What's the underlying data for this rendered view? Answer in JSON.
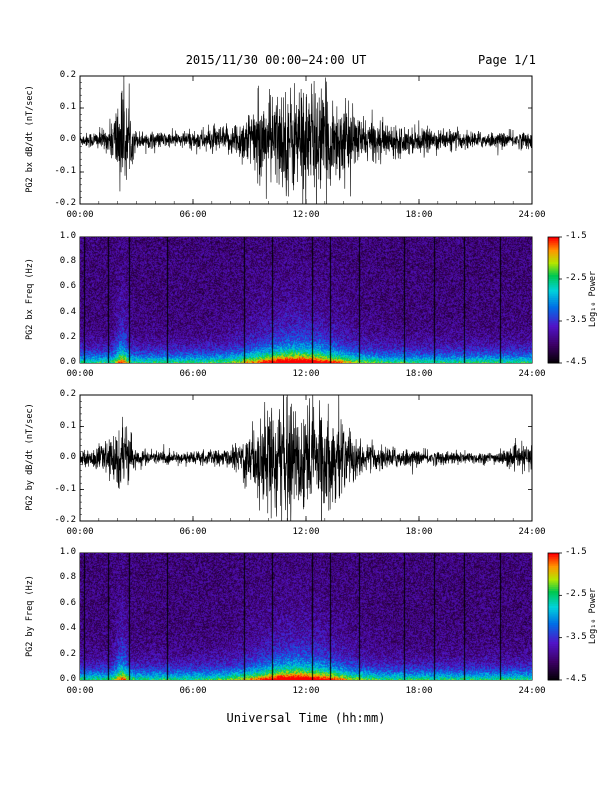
{
  "header": {
    "title": "2015/11/30  00:00−24:00 UT",
    "page": "Page 1/1"
  },
  "xlabel": "Universal Time (hh:mm)",
  "chart_data": [
    {
      "type": "line",
      "ylabel": "PG2 bx dB/dt (nT/sec)",
      "xticks": [
        "00:00",
        "06:00",
        "12:00",
        "18:00",
        "24:00"
      ],
      "xlim": [
        0,
        24
      ],
      "ylim": [
        -0.2,
        0.2
      ],
      "yticks": [
        "-0.2",
        "-0.1",
        "0.0",
        "0.1",
        "0.2"
      ],
      "envelope": [
        {
          "hour": 0,
          "amplitude": 0.02
        },
        {
          "hour": 1.5,
          "amplitude": 0.04
        },
        {
          "hour": 2.2,
          "amplitude": 0.18
        },
        {
          "hour": 3,
          "amplitude": 0.03
        },
        {
          "hour": 5,
          "amplitude": 0.025
        },
        {
          "hour": 8,
          "amplitude": 0.05
        },
        {
          "hour": 10,
          "amplitude": 0.15
        },
        {
          "hour": 12,
          "amplitude": 0.2
        },
        {
          "hour": 13.5,
          "amplitude": 0.15
        },
        {
          "hour": 15,
          "amplitude": 0.07
        },
        {
          "hour": 18,
          "amplitude": 0.04
        },
        {
          "hour": 22,
          "amplitude": 0.025
        },
        {
          "hour": 24,
          "amplitude": 0.03
        }
      ]
    },
    {
      "type": "heatmap",
      "ylabel": "PG2 bx Freq (Hz)",
      "xticks": [
        "00:00",
        "06:00",
        "12:00",
        "18:00",
        "24:00"
      ],
      "xlim": [
        0,
        24
      ],
      "ylim": [
        0,
        1.0
      ],
      "yticks": [
        "0.0",
        "0.2",
        "0.4",
        "0.6",
        "0.8",
        "1.0"
      ],
      "colorbar": {
        "label": "Log₁₀ Power",
        "ticks": [
          "-1.5",
          "-2.5",
          "-3.5",
          "-4.5"
        ],
        "range": [
          -4.5,
          -1.5
        ]
      },
      "peak_hour": 11.5,
      "gap_hours": [
        0.2,
        1.5,
        2.6,
        4.6,
        8.7,
        10.2,
        12.3,
        13.3,
        14.8,
        17.2,
        18.8,
        20.4,
        22.3
      ]
    },
    {
      "type": "line",
      "ylabel": "PG2 by dB/dt (nT/sec)",
      "xticks": [
        "00:00",
        "06:00",
        "12:00",
        "18:00",
        "24:00"
      ],
      "xlim": [
        0,
        24
      ],
      "ylim": [
        -0.2,
        0.2
      ],
      "yticks": [
        "-0.2",
        "-0.1",
        "0.0",
        "0.1",
        "0.2"
      ],
      "envelope": [
        {
          "hour": 0,
          "amplitude": 0.02
        },
        {
          "hour": 1.5,
          "amplitude": 0.05
        },
        {
          "hour": 2.2,
          "amplitude": 0.13
        },
        {
          "hour": 3,
          "amplitude": 0.03
        },
        {
          "hour": 5,
          "amplitude": 0.02
        },
        {
          "hour": 8,
          "amplitude": 0.03
        },
        {
          "hour": 10,
          "amplitude": 0.18
        },
        {
          "hour": 12,
          "amplitude": 0.2
        },
        {
          "hour": 13.5,
          "amplitude": 0.15
        },
        {
          "hour": 15,
          "amplitude": 0.05
        },
        {
          "hour": 18,
          "amplitude": 0.025
        },
        {
          "hour": 22,
          "amplitude": 0.02
        },
        {
          "hour": 24,
          "amplitude": 0.05
        }
      ]
    },
    {
      "type": "heatmap",
      "ylabel": "PG2 by Freq (Hz)",
      "xticks": [
        "00:00",
        "06:00",
        "12:00",
        "18:00",
        "24:00"
      ],
      "xlim": [
        0,
        24
      ],
      "ylim": [
        0,
        1.0
      ],
      "yticks": [
        "0.0",
        "0.2",
        "0.4",
        "0.6",
        "0.8",
        "1.0"
      ],
      "colorbar": {
        "label": "Log₁₀ Power",
        "ticks": [
          "-1.5",
          "-2.5",
          "-3.5",
          "-4.5"
        ],
        "range": [
          -4.5,
          -1.5
        ]
      },
      "peak_hour": 11.5,
      "gap_hours": [
        0.2,
        1.5,
        2.6,
        4.6,
        8.7,
        10.2,
        12.3,
        13.3,
        14.8,
        17.2,
        18.8,
        20.4,
        22.3
      ]
    }
  ]
}
